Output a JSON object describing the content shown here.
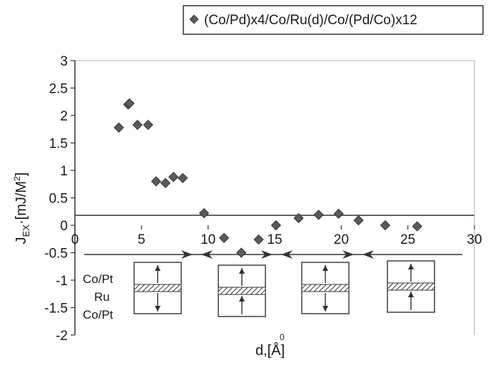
{
  "chart_data": {
    "type": "scatter",
    "xlabel_main": "d,[",
    "xlabel_unit": "Å",
    "xlabel_close": "]",
    "xlabel_ring": "0",
    "ylabel_main": "J",
    "ylabel_sub": "EX",
    "ylabel_unit": "·[mJ/M",
    "ylabel_sup": "2",
    "ylabel_close": "]",
    "xlim": [
      0,
      30
    ],
    "ylim": [
      -2,
      3
    ],
    "xticks": [
      "0",
      "5",
      "10",
      "15",
      "20",
      "25",
      "30"
    ],
    "yticks": [
      "3",
      "2.5",
      "2",
      "1.5",
      "1",
      "0.5",
      "0",
      "-0.5",
      "-1",
      "-1.5",
      "-2"
    ],
    "legend_position": "top-right",
    "series": [
      {
        "name": "(Co/Pd)x4/Co/Ru(d)/Co/(Pd/Co)x12",
        "color": "#5a5a5a",
        "marker": "diamond",
        "x": [
          3.3,
          4.0,
          4.1,
          4.7,
          5.5,
          6.1,
          6.8,
          7.4,
          8.1,
          9.7,
          11.2,
          12.5,
          13.8,
          15.1,
          16.8,
          18.3,
          19.8,
          21.3,
          23.3,
          25.7
        ],
        "y": [
          1.78,
          2.2,
          2.22,
          1.83,
          1.83,
          0.8,
          0.77,
          0.88,
          0.86,
          0.22,
          -0.23,
          -0.5,
          -0.26,
          0.0,
          0.13,
          0.19,
          0.21,
          0.09,
          0.0,
          -0.02
        ]
      }
    ],
    "inset": {
      "stack_labels": [
        "Co/Pt",
        "Ru",
        "Co/Pt"
      ],
      "arrow_pattern": [
        {
          "top": "up",
          "bottom": "down"
        },
        {
          "top": "up",
          "bottom": "up"
        },
        {
          "top": "up",
          "bottom": "down"
        },
        {
          "top": "up",
          "bottom": "up"
        }
      ]
    }
  }
}
